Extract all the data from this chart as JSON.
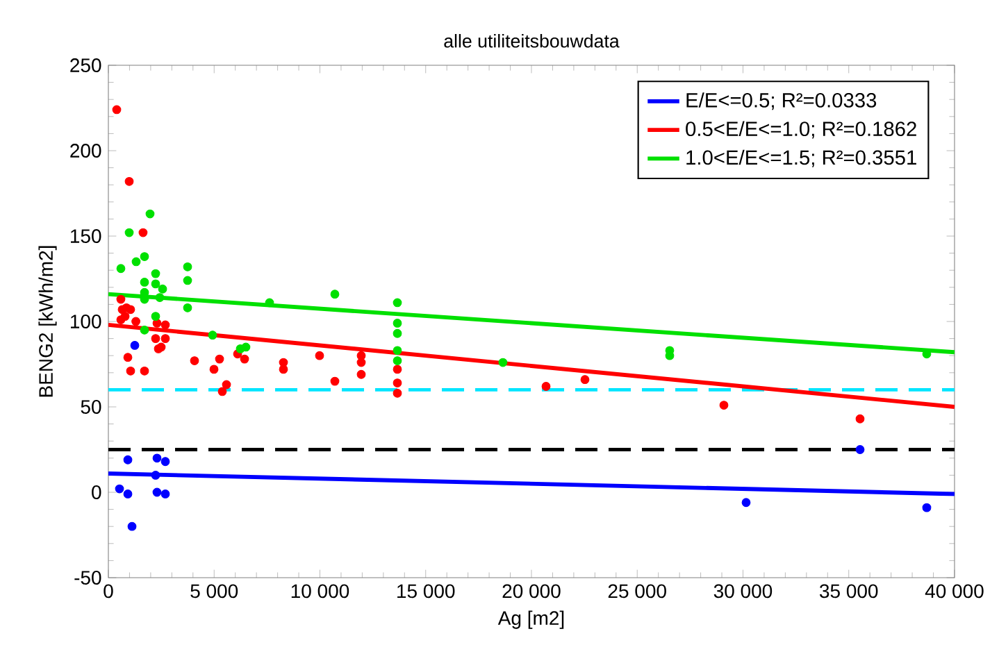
{
  "chart_data": {
    "type": "scatter",
    "title": "alle utiliteitsbouwdata",
    "xlabel": "Ag [m2]",
    "ylabel": "BENG2 [kWh/m2]",
    "xlim": [
      0,
      40000
    ],
    "ylim": [
      -50,
      250
    ],
    "xticks": [
      0,
      {
        "value": 5000,
        "label": "5 000"
      },
      {
        "value": 10000,
        "label": "10 000"
      },
      {
        "value": 15000,
        "label": "15 000"
      },
      {
        "value": 20000,
        "label": "20 000"
      },
      {
        "value": 25000,
        "label": "25 000"
      },
      {
        "value": 30000,
        "label": "30 000"
      },
      {
        "value": 35000,
        "label": "35 000"
      },
      {
        "value": 40000,
        "label": "40 000"
      }
    ],
    "yticks": [
      -50,
      0,
      50,
      100,
      150,
      200,
      250
    ],
    "legend": "top right",
    "series": [
      {
        "marker": "circle",
        "color": "#0000ff",
        "x": [
          1248,
          920,
          2299,
          2693,
          526,
          920,
          2299,
          2693,
          2233,
          1117,
          30148,
          35534,
          38686
        ],
        "values": [
          86,
          19,
          20,
          18,
          2,
          -1,
          0,
          -1,
          10,
          -20,
          -6,
          25,
          -9
        ]
      },
      {
        "marker": "circle",
        "color": "#ff0000",
        "x": [
          394,
          985,
          1640,
          590,
          655,
          855,
          1050,
          590,
          790,
          1300,
          920,
          1051,
          1708,
          2233,
          2299,
          2693,
          2693,
          2496,
          2365,
          4072,
          4992,
          5255,
          5386,
          5583,
          6108,
          6437,
          8276,
          8276,
          9983,
          10706,
          11954,
          11954,
          11954,
          13662,
          13662,
          13662,
          20690,
          22529,
          29097,
          35534
        ],
        "values": [
          224,
          182,
          152,
          113,
          107,
          108,
          107,
          101,
          103,
          100,
          79,
          71,
          71,
          90,
          99,
          98,
          90,
          85,
          84,
          77,
          72,
          78,
          59,
          63,
          81,
          78,
          76,
          72,
          80,
          65,
          80,
          76,
          69,
          72,
          64,
          58,
          62,
          66,
          51,
          43
        ]
      },
      {
        "marker": "circle",
        "color": "#00e000",
        "x": [
          1970,
          985,
          1314,
          1708,
          591,
          2233,
          1708,
          2233,
          2562,
          2430,
          1708,
          1708,
          2233,
          1708,
          3744,
          3744,
          3744,
          4926,
          6240,
          6500,
          7619,
          10706,
          13662,
          13662,
          13662,
          13662,
          13662,
          18650,
          26535,
          26535,
          38686
        ],
        "values": [
          163,
          152,
          135,
          138,
          131,
          128,
          123,
          122,
          119,
          114,
          117,
          113,
          103,
          95,
          132,
          124,
          108,
          92,
          84,
          85,
          111,
          116,
          111,
          99,
          93,
          83,
          77,
          76,
          83,
          80,
          81
        ]
      },
      {
        "type": "line",
        "marker": "none",
        "name": "E/E<=0.5; R²=0.0333",
        "color": "#0000ff",
        "x": [
          0,
          40000
        ],
        "values": [
          11,
          -1
        ]
      },
      {
        "type": "line",
        "marker": "none",
        "name": "0.5<E/E<=1.0; R²=0.1862",
        "color": "#ff0000",
        "x": [
          0,
          40000
        ],
        "values": [
          98,
          50
        ]
      },
      {
        "type": "line",
        "marker": "none",
        "name": "1.0<E/E<=1.5; R²=0.3551",
        "color": "#00e000",
        "x": [
          0,
          40000
        ],
        "values": [
          116,
          82
        ]
      }
    ],
    "ref_lines": [
      {
        "axis": "y",
        "value": 60,
        "color": "#00e5ff",
        "line_style": "dashed"
      },
      {
        "axis": "y",
        "value": 25,
        "color": "#000000",
        "line_style": "dashed"
      }
    ]
  }
}
